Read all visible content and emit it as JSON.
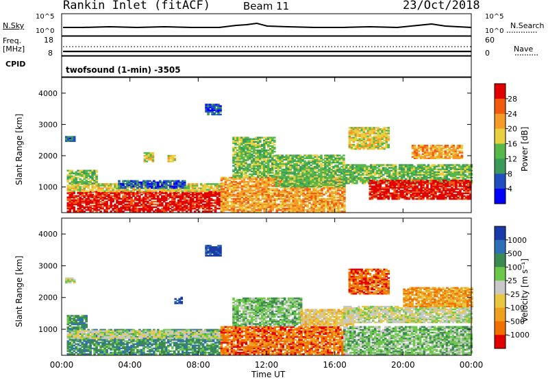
{
  "header": {
    "station": "Rankin Inlet (fitACF)",
    "beam": "Beam 11",
    "date": "23/Oct/2018"
  },
  "top_panels": {
    "nsky_label": "N.Sky",
    "nsky_ticks": [
      "10^5",
      "10^0"
    ],
    "nsearch_label": "N.Search",
    "nsearch_ticks": [
      "10^5",
      "10^0"
    ],
    "freq_label_1": "Freq.",
    "freq_label_2": "[MHz]",
    "freq_ticks": [
      "18",
      "8"
    ],
    "nave_label": "Nave",
    "nave_ticks": [
      "60",
      "0"
    ],
    "cpid_label": "CPID",
    "cpid_value": "twofsound (1-min) -3505"
  },
  "time_axis": {
    "label": "Time UT",
    "ticks": [
      "00:00",
      "04:00",
      "08:00",
      "12:00",
      "16:00",
      "20:00",
      "00:00"
    ]
  },
  "chart_data": [
    {
      "type": "heatmap",
      "panel": "power",
      "ylabel": "Slant Range [km]",
      "yticks": [
        1000,
        2000,
        3000,
        4000
      ],
      "ylim": [
        180,
        4500
      ],
      "xlim_hours": [
        0,
        24
      ],
      "colorbar_label": "Power [dB]",
      "colorbar_ticks": [
        "28",
        "24",
        "20",
        "16",
        "12",
        "8",
        "4"
      ],
      "colorbar_colors": [
        "#0000ff",
        "#1f4fbf",
        "#3a9a5a",
        "#57b84a",
        "#e8d040",
        "#f59b2a",
        "#f25a10",
        "#e00000"
      ],
      "regions": [
        {
          "t": [
            0.3,
            9.3
          ],
          "r": [
            200,
            850
          ],
          "level": 7
        },
        {
          "t": [
            0.3,
            9.3
          ],
          "r": [
            850,
            1100
          ],
          "level": 4
        },
        {
          "t": [
            0.3,
            2.0
          ],
          "r": [
            1100,
            1550
          ],
          "level": 3
        },
        {
          "t": [
            3.3,
            7.2
          ],
          "r": [
            950,
            1200
          ],
          "level": 1
        },
        {
          "t": [
            9.3,
            16.5
          ],
          "r": [
            200,
            1300
          ],
          "level": 5
        },
        {
          "t": [
            10.0,
            12.5
          ],
          "r": [
            1300,
            2600
          ],
          "level": 3
        },
        {
          "t": [
            12.5,
            16.5
          ],
          "r": [
            1000,
            2000
          ],
          "level": 3
        },
        {
          "t": [
            16.5,
            24
          ],
          "r": [
            1100,
            1700
          ],
          "level": 3
        },
        {
          "t": [
            18.0,
            24
          ],
          "r": [
            600,
            1200
          ],
          "level": 7
        },
        {
          "t": [
            16.8,
            19.2
          ],
          "r": [
            2200,
            2900
          ],
          "level": 4
        },
        {
          "t": [
            20.5,
            23.5
          ],
          "r": [
            1900,
            2350
          ],
          "level": 5
        },
        {
          "t": [
            4.8,
            5.3
          ],
          "r": [
            1800,
            2100
          ],
          "level": 4
        },
        {
          "t": [
            6.2,
            6.6
          ],
          "r": [
            1800,
            2000
          ],
          "level": 4
        },
        {
          "t": [
            8.4,
            9.3
          ],
          "r": [
            3300,
            3650
          ],
          "level": 1
        },
        {
          "t": [
            0.2,
            0.8
          ],
          "r": [
            2450,
            2600
          ],
          "level": 1
        }
      ]
    },
    {
      "type": "heatmap",
      "panel": "velocity",
      "ylabel": "Slant Range [km]",
      "yticks": [
        1000,
        2000,
        3000,
        4000
      ],
      "ylim": [
        180,
        4500
      ],
      "xlim_hours": [
        0,
        24
      ],
      "colorbar_label": "Velocity [m s⁻¹]",
      "colorbar_ticks": [
        "1000",
        "500",
        "100",
        "25",
        "-25",
        "-100",
        "-500",
        "-1000"
      ],
      "colorbar_colors": [
        "#1a3aa8",
        "#2f6fb8",
        "#3c8a52",
        "#6cc848",
        "#c8c8c8",
        "#e8c840",
        "#f0a020",
        "#f07000",
        "#e00000"
      ],
      "regions": [
        {
          "t": [
            0.3,
            9.3
          ],
          "r": [
            200,
            1000
          ],
          "level": 2
        },
        {
          "t": [
            0.3,
            9.3
          ],
          "r": [
            700,
            950
          ],
          "level": 4
        },
        {
          "t": [
            0.3,
            1.5
          ],
          "r": [
            1000,
            1450
          ],
          "level": 2
        },
        {
          "t": [
            9.3,
            16.5
          ],
          "r": [
            200,
            1100
          ],
          "level": 7
        },
        {
          "t": [
            10.0,
            14.0
          ],
          "r": [
            1100,
            2000
          ],
          "level": 3
        },
        {
          "t": [
            14.0,
            17.0
          ],
          "r": [
            1100,
            1600
          ],
          "level": 5
        },
        {
          "t": [
            16.5,
            24
          ],
          "r": [
            1200,
            1700
          ],
          "level": 4
        },
        {
          "t": [
            16.5,
            24
          ],
          "r": [
            200,
            1100
          ],
          "level": 3
        },
        {
          "t": [
            16.8,
            19.2
          ],
          "r": [
            2100,
            2900
          ],
          "level": 7
        },
        {
          "t": [
            20.0,
            24
          ],
          "r": [
            1700,
            2300
          ],
          "level": 6
        },
        {
          "t": [
            8.4,
            9.3
          ],
          "r": [
            3300,
            3650
          ],
          "level": 0
        },
        {
          "t": [
            6.6,
            7.0
          ],
          "r": [
            1800,
            2000
          ],
          "level": 0
        },
        {
          "t": [
            0.2,
            0.8
          ],
          "r": [
            2450,
            2600
          ],
          "level": 4
        }
      ]
    }
  ]
}
